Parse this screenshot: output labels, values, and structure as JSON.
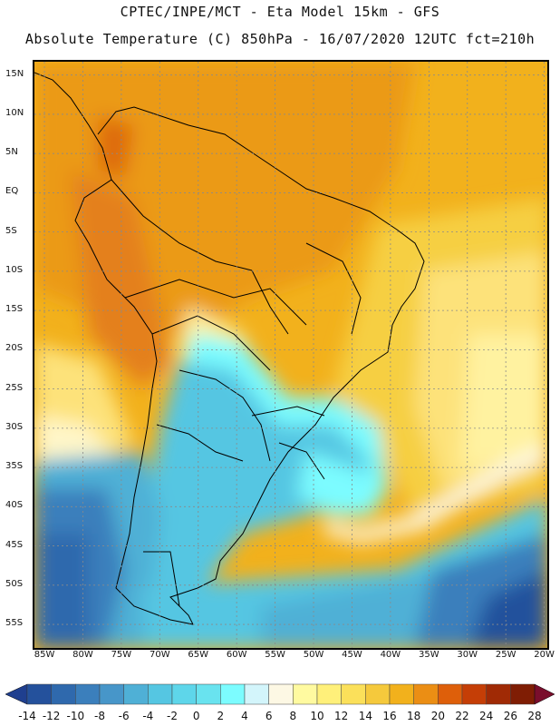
{
  "header": {
    "line1": "CPTEC/INPE/MCT -  Eta Model 15km - GFS",
    "line2": "Absolute Temperature (C) 850hPa - 16/07/2020 12UTC fct=210h"
  },
  "map": {
    "lat_labels": [
      "15N",
      "10N",
      "5N",
      "EQ",
      "5S",
      "10S",
      "15S",
      "20S",
      "25S",
      "30S",
      "35S",
      "40S",
      "45S",
      "50S",
      "55S"
    ],
    "lon_labels": [
      "85W",
      "80W",
      "75W",
      "70W",
      "65W",
      "60W",
      "55W",
      "50W",
      "45W",
      "40W",
      "35W",
      "30W",
      "25W",
      "20W"
    ],
    "lat_values": [
      15,
      10,
      5,
      0,
      -5,
      -10,
      -15,
      -20,
      -25,
      -30,
      -35,
      -40,
      -45,
      -50,
      -55
    ],
    "lon_values": [
      -85,
      -80,
      -75,
      -70,
      -65,
      -60,
      -55,
      -50,
      -45,
      -40,
      -35,
      -30,
      -25,
      -20
    ],
    "lat_range": [
      -58,
      16.7
    ],
    "lon_range": [
      -86.3,
      -19.6
    ],
    "grid": true,
    "grid_style": "dotted",
    "unit": "C"
  },
  "colorbar": {
    "labels": [
      "-14",
      "-12",
      "-10",
      "-8",
      "-6",
      "-4",
      "-2",
      "0",
      "2",
      "4",
      "6",
      "8",
      "10",
      "12",
      "14",
      "16",
      "18",
      "20",
      "22",
      "24",
      "26",
      "28"
    ],
    "colors": [
      "#1f3f8f",
      "#24519c",
      "#2f69ad",
      "#3b7fbc",
      "#4796c9",
      "#4fb0d6",
      "#55c6e2",
      "#5ed6ea",
      "#69e3ef",
      "#7cfcff",
      "#d3f5fb",
      "#fdf8e4",
      "#fffaa0",
      "#fff07a",
      "#fbe05a",
      "#f5c93c",
      "#f2b11c",
      "#eb8e14",
      "#de5f0a",
      "#c53e06",
      "#a02a05",
      "#7f1d04",
      "#7a0e2c"
    ]
  }
}
